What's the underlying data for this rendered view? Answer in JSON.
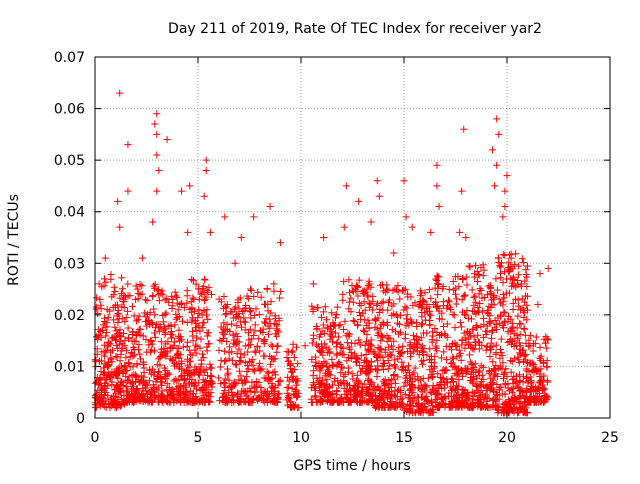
{
  "chart_data": {
    "type": "scatter",
    "title": "Day 211 of 2019, Rate Of TEC Index for receiver yar2",
    "xlabel": "GPS time / hours",
    "ylabel": "ROTI / TECUs",
    "xlim": [
      0,
      25
    ],
    "ylim": [
      0,
      0.07
    ],
    "x_ticks": [
      0,
      5,
      10,
      15,
      20,
      25
    ],
    "y_ticks": [
      0,
      0.01,
      0.02,
      0.03,
      0.04,
      0.05,
      0.06,
      0.07
    ],
    "x_tick_labels": [
      "0",
      "5",
      "10",
      "15",
      "20",
      "25"
    ],
    "y_tick_labels": [
      "0",
      "0.01",
      "0.02",
      "0.03",
      "0.04",
      "0.05",
      "0.06",
      "0.07"
    ],
    "grid": true,
    "marker": "+",
    "color": "#ff0000",
    "data_gap_hours": [
      9.9,
      10.5
    ],
    "series": [
      {
        "name": "ROTI",
        "points": [
          [
            1.2,
            0.063
          ],
          [
            3.0,
            0.059
          ],
          [
            2.9,
            0.057
          ],
          [
            3.5,
            0.054
          ],
          [
            3.0,
            0.055
          ],
          [
            1.6,
            0.053
          ],
          [
            3.0,
            0.051
          ],
          [
            5.4,
            0.05
          ],
          [
            5.4,
            0.048
          ],
          [
            4.6,
            0.045
          ],
          [
            3.1,
            0.048
          ],
          [
            3.0,
            0.044
          ],
          [
            1.6,
            0.044
          ],
          [
            1.1,
            0.042
          ],
          [
            5.3,
            0.043
          ],
          [
            4.2,
            0.044
          ],
          [
            2.8,
            0.038
          ],
          [
            6.3,
            0.039
          ],
          [
            7.7,
            0.039
          ],
          [
            8.5,
            0.041
          ],
          [
            12.2,
            0.045
          ],
          [
            12.8,
            0.042
          ],
          [
            13.7,
            0.046
          ],
          [
            13.8,
            0.043
          ],
          [
            15.0,
            0.046
          ],
          [
            16.6,
            0.049
          ],
          [
            16.6,
            0.045
          ],
          [
            16.7,
            0.041
          ],
          [
            17.9,
            0.056
          ],
          [
            17.8,
            0.044
          ],
          [
            19.5,
            0.058
          ],
          [
            19.6,
            0.055
          ],
          [
            19.3,
            0.052
          ],
          [
            19.5,
            0.049
          ],
          [
            20.0,
            0.047
          ],
          [
            19.9,
            0.044
          ],
          [
            19.9,
            0.041
          ],
          [
            19.4,
            0.045
          ],
          [
            19.8,
            0.039
          ],
          [
            20.2,
            0.031
          ],
          [
            13.4,
            0.038
          ],
          [
            12.1,
            0.037
          ],
          [
            15.1,
            0.039
          ],
          [
            16.3,
            0.036
          ],
          [
            17.7,
            0.036
          ],
          [
            18.0,
            0.035
          ],
          [
            15.4,
            0.037
          ],
          [
            11.1,
            0.035
          ],
          [
            0.5,
            0.031
          ],
          [
            1.2,
            0.037
          ],
          [
            2.3,
            0.031
          ],
          [
            4.5,
            0.036
          ],
          [
            5.6,
            0.036
          ],
          [
            7.1,
            0.035
          ],
          [
            9.0,
            0.034
          ],
          [
            21.6,
            0.028
          ],
          [
            22.0,
            0.029
          ],
          [
            0.2,
            0.026
          ],
          [
            6.8,
            0.03
          ],
          [
            10.6,
            0.026
          ],
          [
            14.5,
            0.032
          ],
          [
            20.7,
            0.026
          ],
          [
            21.5,
            0.022
          ],
          [
            9.6,
            0.013
          ],
          [
            10.2,
            0.014
          ]
        ]
      }
    ],
    "cluster_envelope": [
      {
        "x0": 0.0,
        "x1": 1.5,
        "ymin": 0.002,
        "ymax": 0.028,
        "n": 260
      },
      {
        "x0": 1.5,
        "x1": 3.0,
        "ymin": 0.003,
        "ymax": 0.026,
        "n": 220
      },
      {
        "x0": 3.0,
        "x1": 4.5,
        "ymin": 0.003,
        "ymax": 0.025,
        "n": 220
      },
      {
        "x0": 4.5,
        "x1": 5.7,
        "ymin": 0.003,
        "ymax": 0.027,
        "n": 180
      },
      {
        "x0": 6.0,
        "x1": 7.5,
        "ymin": 0.003,
        "ymax": 0.024,
        "n": 170
      },
      {
        "x0": 7.5,
        "x1": 9.0,
        "ymin": 0.003,
        "ymax": 0.026,
        "n": 170
      },
      {
        "x0": 9.3,
        "x1": 9.9,
        "ymin": 0.002,
        "ymax": 0.015,
        "n": 60
      },
      {
        "x0": 10.5,
        "x1": 12.0,
        "ymin": 0.003,
        "ymax": 0.022,
        "n": 200
      },
      {
        "x0": 12.0,
        "x1": 13.5,
        "ymin": 0.003,
        "ymax": 0.027,
        "n": 230
      },
      {
        "x0": 13.5,
        "x1": 15.0,
        "ymin": 0.002,
        "ymax": 0.026,
        "n": 220
      },
      {
        "x0": 15.0,
        "x1": 16.5,
        "ymin": 0.001,
        "ymax": 0.025,
        "n": 220
      },
      {
        "x0": 16.5,
        "x1": 18.0,
        "ymin": 0.002,
        "ymax": 0.028,
        "n": 230
      },
      {
        "x0": 18.0,
        "x1": 19.5,
        "ymin": 0.002,
        "ymax": 0.03,
        "n": 260
      },
      {
        "x0": 19.5,
        "x1": 21.0,
        "ymin": 0.001,
        "ymax": 0.032,
        "n": 280
      },
      {
        "x0": 21.0,
        "x1": 22.0,
        "ymin": 0.003,
        "ymax": 0.016,
        "n": 120
      }
    ]
  }
}
